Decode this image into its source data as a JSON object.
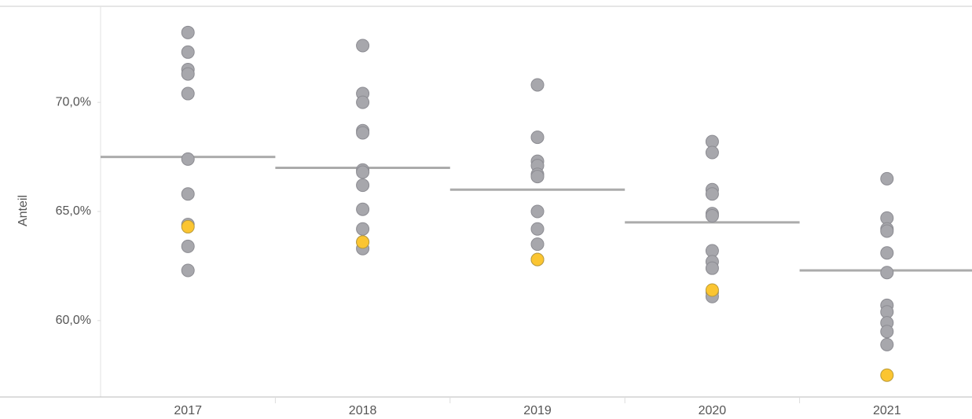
{
  "chart_data": {
    "type": "strip",
    "y_label": "Anteil",
    "categories": [
      "2017",
      "2018",
      "2019",
      "2020",
      "2021"
    ],
    "values": [
      [
        73.2,
        72.3,
        71.5,
        71.3,
        70.4,
        67.4,
        65.8,
        64.4,
        63.4,
        62.3
      ],
      [
        72.6,
        70.4,
        70.0,
        68.7,
        68.6,
        66.9,
        66.8,
        66.2,
        65.1,
        64.2,
        63.6,
        63.3
      ],
      [
        70.8,
        68.4,
        67.3,
        67.1,
        66.7,
        66.6,
        65.0,
        64.2,
        63.5,
        62.8
      ],
      [
        68.2,
        67.7,
        66.0,
        65.8,
        64.9,
        64.8,
        63.2,
        62.7,
        62.4,
        61.3,
        61.1
      ],
      [
        66.5,
        64.7,
        64.2,
        64.1,
        63.1,
        62.2,
        60.7,
        60.4,
        59.9,
        59.5,
        58.9
      ]
    ],
    "highlight": [
      64.3,
      63.6,
      62.8,
      61.4,
      57.5
    ],
    "mean": [
      67.5,
      67.0,
      66.0,
      64.5,
      62.3
    ],
    "color": "#a7a7ac",
    "highlight_color": "#fbc531",
    "mean_color": "#ababab",
    "ylim": [
      56.5,
      74.4
    ],
    "yticks": [
      {
        "value": 60,
        "label": "60,0%"
      },
      {
        "value": 65,
        "label": "65,0%"
      },
      {
        "value": 70,
        "label": "70,0%"
      }
    ]
  }
}
